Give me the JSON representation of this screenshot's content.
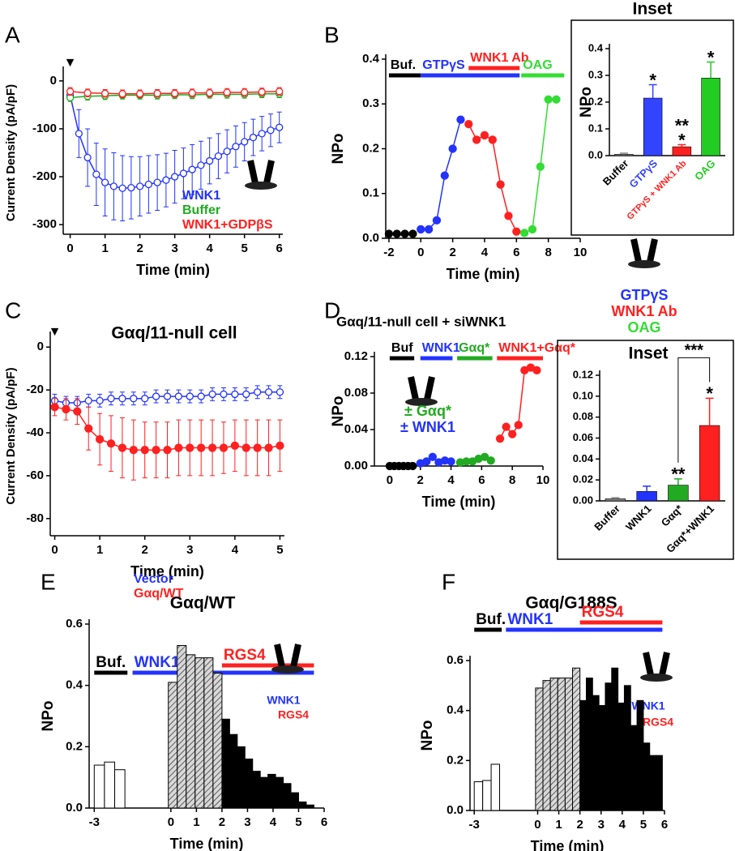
{
  "chart_data": [
    {
      "type": "line",
      "panel": "A",
      "xlabel": "Time (min)",
      "ylabel": "Current Density (pA/pF)",
      "arrow": "▼",
      "xlim": [
        -0.2,
        6.1
      ],
      "xticks": [
        0,
        1,
        2,
        3,
        4,
        5,
        6
      ],
      "ylim": [
        -320,
        20
      ],
      "yticks": [
        -300,
        -200,
        -100,
        0
      ],
      "marker": "open",
      "legend": true,
      "series": [
        {
          "name": "WNK1",
          "color": "#2233ff",
          "x": [
            0,
            0.25,
            0.5,
            0.75,
            1,
            1.25,
            1.5,
            1.75,
            2,
            2.25,
            2.5,
            2.75,
            3,
            3.25,
            3.5,
            3.75,
            4,
            4.25,
            4.5,
            4.75,
            5,
            5.25,
            5.5,
            5.75,
            6
          ],
          "values": [
            -30,
            -110,
            -160,
            -195,
            -212,
            -220,
            -224,
            -223,
            -220,
            -216,
            -212,
            -207,
            -200,
            -193,
            -185,
            -176,
            -167,
            -157,
            -147,
            -137,
            -127,
            -118,
            -110,
            -103,
            -97
          ],
          "errors": [
            10,
            50,
            60,
            65,
            70,
            70,
            68,
            65,
            62,
            60,
            58,
            56,
            55,
            53,
            52,
            50,
            48,
            47,
            45,
            43,
            40,
            38,
            36,
            34,
            32
          ]
        },
        {
          "name": "Buffer",
          "color": "#22aa22",
          "x": [
            0,
            0.5,
            1,
            1.5,
            2,
            2.5,
            3,
            3.5,
            4,
            4.5,
            5,
            5.5,
            6
          ],
          "values": [
            -35,
            -32,
            -31,
            -30,
            -30,
            -30,
            -29,
            -29,
            -28,
            -28,
            -28,
            -27,
            -27
          ],
          "errors": [
            8,
            8,
            8,
            8,
            8,
            8,
            8,
            8,
            8,
            8,
            8,
            8,
            8
          ]
        },
        {
          "name": "WNK1+GDPβS",
          "color": "#ff2020",
          "x": [
            0,
            0.5,
            1,
            1.5,
            2,
            2.5,
            3,
            3.5,
            4,
            4.5,
            5,
            5.5,
            6
          ],
          "values": [
            -22,
            -25,
            -26,
            -27,
            -27,
            -26,
            -26,
            -25,
            -25,
            -24,
            -24,
            -23,
            -22
          ],
          "errors": [
            8,
            8,
            8,
            8,
            8,
            8,
            8,
            8,
            8,
            8,
            8,
            8,
            8
          ]
        }
      ]
    },
    {
      "type": "line",
      "panel": "B",
      "xlabel": "Time (min)",
      "ylabel": "NPo",
      "xlim": [
        -2.2,
        10
      ],
      "xticks": [
        -2,
        0,
        2,
        4,
        6,
        8,
        10
      ],
      "ylim": [
        0,
        0.4
      ],
      "yticks": [
        {
          "value": 0,
          "label": "0.0"
        },
        0.1,
        0.2,
        0.3,
        0.4
      ],
      "marker": "filled",
      "treatments": [
        {
          "label": "Buf.",
          "color": "#000000",
          "start": -2,
          "end": 0
        },
        {
          "label": "GTPγS",
          "color": "#2233ff",
          "start": 0,
          "end": 6.2
        },
        {
          "label": "WNK1 Ab",
          "color": "#ff2020",
          "start": 3,
          "end": 6.2
        },
        {
          "label": "OAG",
          "color": "#33dd33",
          "start": 6.3,
          "end": 9
        }
      ],
      "icon_labels": [
        {
          "text": "GTPγS",
          "color": "#2233ff"
        },
        {
          "text": "WNK1 Ab",
          "color": "#ff2020"
        },
        {
          "text": "OAG",
          "color": "#33dd33"
        }
      ],
      "series": [
        {
          "color": "#000000",
          "x": [
            -2,
            -1.5,
            -1,
            -0.5
          ],
          "values": [
            0.01,
            0.01,
            0.01,
            0.01
          ]
        },
        {
          "color": "#2233ff",
          "x": [
            0,
            0.5,
            1,
            1.5,
            2,
            2.5
          ],
          "values": [
            0.02,
            0.02,
            0.04,
            0.14,
            0.2,
            0.265
          ]
        },
        {
          "color": "#ff2020",
          "x": [
            3,
            3.5,
            4,
            4.5,
            5,
            5.5,
            6
          ],
          "values": [
            0.255,
            0.22,
            0.23,
            0.22,
            0.12,
            0.05,
            0.015
          ]
        },
        {
          "color": "#33dd33",
          "x": [
            6.5,
            7,
            7.5,
            8,
            8.5
          ],
          "values": [
            0.012,
            0.02,
            0.16,
            0.31,
            0.31
          ]
        }
      ]
    },
    {
      "type": "bar",
      "title": "Inset",
      "ylabel": "NPo",
      "categories": [
        "Buffer",
        "GTPγS",
        "GTPγS + WNK1 Ab",
        "OAG"
      ],
      "values": [
        0.005,
        0.215,
        0.033,
        0.29
      ],
      "errors": [
        0.004,
        0.05,
        0.008,
        0.06
      ],
      "colors": [
        "#888888",
        "#3344ff",
        "#ff2020",
        "#22cc22"
      ],
      "colored_labels": true,
      "ylim": [
        0,
        0.4
      ],
      "yticks": [
        {
          "value": 0,
          "label": "0.0"
        },
        0.1,
        0.2,
        0.3,
        0.4
      ],
      "stars": [
        {
          "bar": 1,
          "label": "*"
        },
        {
          "bar": 2,
          "label": "*"
        },
        {
          "bar": 2,
          "label": "**"
        },
        {
          "bar": 3,
          "label": "*"
        }
      ]
    },
    {
      "type": "line",
      "panel": "C",
      "title": "Gαq/11-null cell",
      "xlabel": "Time (min)",
      "ylabel": "Current Density (pA/pF)",
      "arrow": "▼",
      "xlim": [
        -0.1,
        5.1
      ],
      "xticks": [
        0,
        1,
        2,
        3,
        4,
        5
      ],
      "ylim": [
        -88,
        5
      ],
      "yticks": [
        -80,
        -60,
        -40,
        -20,
        0
      ],
      "marker": "mixed",
      "legend": true,
      "series": [
        {
          "name": "Vector",
          "color": "#2233ff",
          "marker": "open",
          "x": [
            0,
            0.25,
            0.5,
            0.75,
            1,
            1.25,
            1.5,
            1.75,
            2,
            2.25,
            2.5,
            2.75,
            3,
            3.25,
            3.5,
            3.75,
            4,
            4.25,
            4.5,
            4.75,
            5
          ],
          "values": [
            -25,
            -26,
            -26,
            -25,
            -25,
            -24,
            -24,
            -24,
            -24,
            -23,
            -23,
            -23,
            -23,
            -23,
            -22,
            -22,
            -22,
            -22,
            -21,
            -21,
            -21
          ],
          "errors": [
            3,
            3,
            3,
            3,
            3,
            3,
            3,
            3,
            3,
            3,
            3,
            3,
            3,
            3,
            3,
            3,
            3,
            3,
            3,
            3,
            3
          ]
        },
        {
          "name": "Gαq/WT",
          "color": "#ff2020",
          "marker": "filled",
          "x": [
            0,
            0.25,
            0.5,
            0.75,
            1,
            1.25,
            1.5,
            1.75,
            2,
            2.25,
            2.5,
            2.75,
            3,
            3.25,
            3.5,
            3.75,
            4,
            4.25,
            4.5,
            4.75,
            5
          ],
          "values": [
            -28,
            -29,
            -30,
            -38,
            -43,
            -45,
            -47,
            -48,
            -48,
            -48,
            -48,
            -47,
            -47,
            -47,
            -47,
            -47,
            -46,
            -47,
            -47,
            -47,
            -46
          ],
          "errors": [
            4,
            5,
            6,
            10,
            12,
            13,
            14,
            14,
            13,
            13,
            13,
            13,
            13,
            13,
            13,
            12,
            12,
            13,
            13,
            13,
            12
          ]
        }
      ]
    },
    {
      "type": "line",
      "panel": "D",
      "title": "Gαq/11-null cell + siWNK1",
      "xlabel": "Time (min)",
      "ylabel": "NPo",
      "xlim": [
        -1,
        10
      ],
      "xticks": [
        0,
        2,
        4,
        6,
        8,
        10
      ],
      "ylim": [
        0,
        0.12
      ],
      "yticks": [
        {
          "value": 0,
          "label": "0.00"
        },
        {
          "value": 0.04,
          "label": "0.04"
        },
        {
          "value": 0.08,
          "label": "0.08"
        },
        {
          "value": 0.12,
          "label": "0.12"
        }
      ],
      "marker": "filled",
      "treatments": [
        {
          "label": "Buf",
          "color": "#000000",
          "start": 0,
          "end": 1.6
        },
        {
          "label": "WNK1",
          "color": "#2233ff",
          "start": 2,
          "end": 4.1
        },
        {
          "label": "Gαq*",
          "color": "#22aa22",
          "start": 4.4,
          "end": 6.7
        },
        {
          "label": "WNK1+Gαq*",
          "color": "#ff2020",
          "start": 7,
          "end": 10
        }
      ],
      "icon_labels": [
        {
          "text": "± Gαq*",
          "color": "#22aa22"
        },
        {
          "text": "± WNK1",
          "color": "#2233ff"
        }
      ],
      "series": [
        {
          "color": "#000000",
          "x": [
            0,
            0.3,
            0.6,
            0.9,
            1.2,
            1.5
          ],
          "values": [
            0,
            0,
            0,
            0,
            0,
            0
          ]
        },
        {
          "color": "#2233ff",
          "x": [
            2,
            2.4,
            2.8,
            3.2,
            3.6,
            4
          ],
          "values": [
            0.003,
            0.005,
            0.01,
            0.004,
            0.006,
            0.005
          ]
        },
        {
          "color": "#22aa22",
          "x": [
            4.6,
            5,
            5.4,
            5.8,
            6.2,
            6.6
          ],
          "values": [
            0.004,
            0.005,
            0.005,
            0.008,
            0.01,
            0.006
          ]
        },
        {
          "color": "#ff2020",
          "x": [
            7.2,
            7.6,
            8,
            8.4,
            8.8,
            9.2,
            9.6
          ],
          "values": [
            0.03,
            0.043,
            0.035,
            0.045,
            0.105,
            0.108,
            0.105
          ]
        }
      ]
    },
    {
      "type": "bar",
      "title": "Inset",
      "categories": [
        "Buffer",
        "WNK1",
        "Gαq*",
        "Gαq*+WNK1"
      ],
      "values": [
        0.002,
        0.009,
        0.015,
        0.072
      ],
      "errors": [
        0.001,
        0.005,
        0.006,
        0.026
      ],
      "colors": [
        "#888888",
        "#2233ff",
        "#22aa22",
        "#ff2020"
      ],
      "colored_labels": false,
      "ylim": [
        0,
        0.12
      ],
      "yticks": [
        {
          "value": 0,
          "label": "0.00"
        },
        {
          "value": 0.02,
          "label": "0.02"
        },
        {
          "value": 0.04,
          "label": "0.04"
        },
        {
          "value": 0.06,
          "label": "0.06"
        },
        {
          "value": 0.08,
          "label": "0.08"
        },
        {
          "value": 0.1,
          "label": "0.10"
        },
        {
          "value": 0.12,
          "label": "0.12"
        }
      ],
      "stars": [
        {
          "bar": 2,
          "label": "**"
        },
        {
          "bar": 3,
          "label": "*"
        }
      ],
      "brackets": [
        {
          "from": 2,
          "to": 3,
          "label": "***"
        }
      ]
    },
    {
      "type": "histogram",
      "panel": "E",
      "title": "Gαq/WT",
      "xlabel": "Time (min)",
      "ylabel": "NPo",
      "xlim": [
        -3.2,
        6
      ],
      "xticks": [
        -3,
        0,
        1,
        2,
        3,
        4,
        5,
        6
      ],
      "ylim": [
        0,
        0.6
      ],
      "yticks": [
        {
          "value": 0,
          "label": "0.0"
        },
        0.2,
        0.4,
        0.6
      ],
      "treatments": [
        {
          "label": "Buf.",
          "color": "#000000",
          "start": -3,
          "end": -1.7
        },
        {
          "label": "WNK1",
          "color": "#2233ff",
          "start": -1.5,
          "end": 5.6
        },
        {
          "label": "RGS4",
          "color": "#ff2020",
          "start": 2,
          "end": 5.6
        }
      ],
      "icon_labels": [
        {
          "text": "WNK1",
          "color": "#2233ff"
        },
        {
          "text": "RGS4",
          "color": "#ff2020"
        }
      ],
      "series": [
        {
          "fill": "#ffffff",
          "bins": [
            -3,
            -2.6,
            -2.2,
            -1.8
          ],
          "values": [
            0.14,
            0.15,
            0.125
          ]
        },
        {
          "fill": "hatch",
          "bins": [
            -0.1,
            0.25,
            0.6,
            0.95,
            1.3,
            1.65,
            2.0
          ],
          "values": [
            0.41,
            0.53,
            0.5,
            0.49,
            0.49,
            0.44
          ]
        },
        {
          "fill": "#000000",
          "bins": [
            2.0,
            2.3,
            2.6,
            2.9,
            3.2,
            3.5,
            3.8,
            4.1,
            4.4,
            4.7,
            5.0,
            5.3,
            5.6
          ],
          "values": [
            0.29,
            0.24,
            0.2,
            0.16,
            0.12,
            0.1,
            0.11,
            0.1,
            0.08,
            0.05,
            0.02,
            0.01
          ]
        }
      ]
    },
    {
      "type": "histogram",
      "panel": "F",
      "title": "Gαq/G188S",
      "xlabel": "Time (min)",
      "ylabel": "NPo",
      "xlim": [
        -3.2,
        6
      ],
      "xticks": [
        -3,
        0,
        1,
        2,
        3,
        4,
        5,
        6
      ],
      "ylim": [
        0,
        0.6
      ],
      "yticks": [
        {
          "value": 0,
          "label": "0.0"
        },
        0.2,
        0.4,
        0.6
      ],
      "treatments": [
        {
          "label": "Buf.",
          "color": "#000000",
          "start": -3,
          "end": -1.7
        },
        {
          "label": "WNK1",
          "color": "#2233ff",
          "start": -1.5,
          "end": 5.9
        },
        {
          "label": "RGS4",
          "color": "#ff2020",
          "start": 2,
          "end": 5.9
        }
      ],
      "icon_labels": [
        {
          "text": "WNK1",
          "color": "#2233ff"
        },
        {
          "text": "RGS4",
          "color": "#ff2020"
        }
      ],
      "series": [
        {
          "fill": "#ffffff",
          "bins": [
            -3,
            -2.6,
            -2.2,
            -1.8
          ],
          "values": [
            0.115,
            0.12,
            0.185
          ]
        },
        {
          "fill": "hatch",
          "bins": [
            -0.1,
            0.25,
            0.6,
            0.95,
            1.3,
            1.65,
            2.0
          ],
          "values": [
            0.49,
            0.52,
            0.53,
            0.53,
            0.53,
            0.57
          ]
        },
        {
          "fill": "#000000",
          "bins": [
            2.0,
            2.3,
            2.6,
            2.9,
            3.2,
            3.5,
            3.8,
            4.1,
            4.4,
            4.7,
            5.0,
            5.3,
            5.6,
            5.9
          ],
          "values": [
            0.44,
            0.53,
            0.46,
            0.42,
            0.51,
            0.57,
            0.43,
            0.5,
            0.34,
            0.44,
            0.27,
            0.22,
            0.22
          ]
        }
      ]
    }
  ]
}
